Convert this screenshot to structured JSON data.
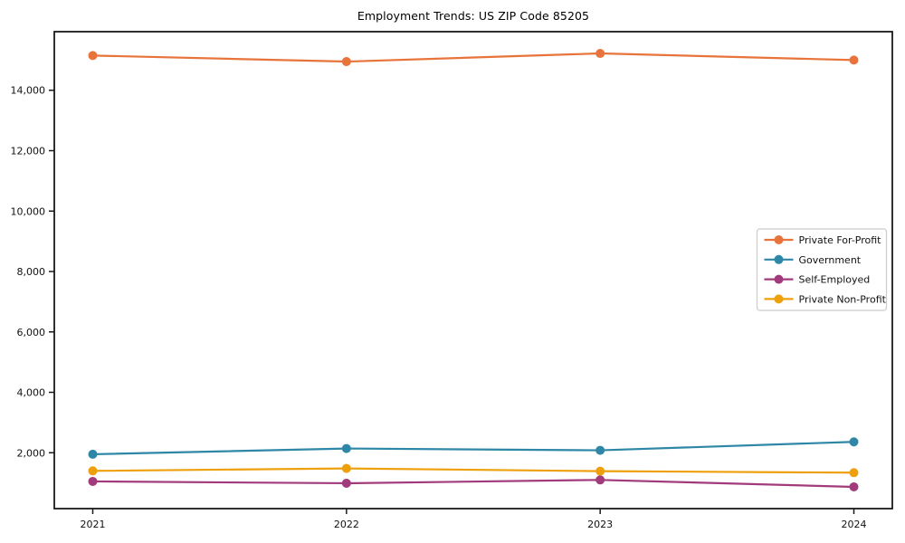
{
  "title": "Employment Trends: US ZIP Code 85205",
  "chart_data": {
    "type": "line",
    "title": "Employment Trends: US ZIP Code 85205",
    "xlabel": "",
    "ylabel": "",
    "x": [
      2021,
      2022,
      2023,
      2024
    ],
    "xtick_labels": [
      "2021",
      "2022",
      "2023",
      "2024"
    ],
    "yticks": [
      2000,
      4000,
      6000,
      8000,
      10000,
      12000,
      14000
    ],
    "ytick_labels": [
      "2,000",
      "4,000",
      "6,000",
      "8,000",
      "10,000",
      "12,000",
      "14,000"
    ],
    "ylim": [
      150,
      15940
    ],
    "grid": false,
    "legend_position": "center-right",
    "marker": "circle",
    "series": [
      {
        "name": "Private For-Profit",
        "color": "#E8743B",
        "values": [
          15150,
          14950,
          15220,
          15000
        ]
      },
      {
        "name": "Government",
        "color": "#2E87A6",
        "values": [
          1950,
          2140,
          2080,
          2360
        ]
      },
      {
        "name": "Self-Employed",
        "color": "#A23B7C",
        "values": [
          1050,
          990,
          1100,
          870
        ]
      },
      {
        "name": "Private Non-Profit",
        "color": "#EEA00C",
        "values": [
          1400,
          1480,
          1390,
          1340
        ]
      }
    ],
    "axis_color": "#1a1a1a",
    "legend_border_color": "#cccccc",
    "background_color": "#ffffff"
  }
}
